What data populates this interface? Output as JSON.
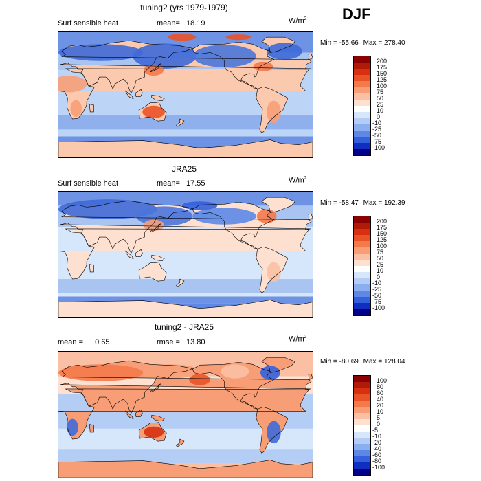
{
  "season_label": "DJF",
  "chart_data": [
    {
      "type": "heatmap",
      "title": "tuning2 (yrs 1979-1979)",
      "variable": "Surf sensible heat",
      "stat_label": "mean=",
      "stat_value": "18.19",
      "units": "W/m2",
      "min_label": "Min = -55.66",
      "max_label": "Max = 278.40",
      "min": -55.66,
      "max": 278.4,
      "colorbar_levels": [
        "200",
        "175",
        "150",
        "125",
        "100",
        "75",
        "50",
        "25",
        "10",
        "0",
        "-10",
        "-25",
        "-50",
        "-75",
        "-100"
      ],
      "colorbar_colors": [
        "#8b0000",
        "#b01a08",
        "#d6300f",
        "#ea5327",
        "#f47a4c",
        "#f89e77",
        "#fbc0a3",
        "#fde0cf",
        "#ffffff",
        "#d6e6fb",
        "#b4cdf4",
        "#8aaeef",
        "#5d88e6",
        "#3460db",
        "#0f2fbe",
        "#00008b"
      ],
      "map_style": "sensible_model"
    },
    {
      "type": "heatmap",
      "title": "JRA25",
      "variable": "Surf sensible heat",
      "stat_label": "mean=",
      "stat_value": "17.55",
      "units": "W/m2",
      "min_label": "Min = -58.47",
      "max_label": "Max = 192.39",
      "min": -58.47,
      "max": 192.39,
      "colorbar_levels": [
        "200",
        "175",
        "150",
        "125",
        "100",
        "75",
        "50",
        "25",
        "10",
        "0",
        "-10",
        "-25",
        "-50",
        "-75",
        "-100"
      ],
      "colorbar_colors": [
        "#8b0000",
        "#b01a08",
        "#d6300f",
        "#ea5327",
        "#f47a4c",
        "#f89e77",
        "#fbc0a3",
        "#fde0cf",
        "#ffffff",
        "#d6e6fb",
        "#b4cdf4",
        "#8aaeef",
        "#5d88e6",
        "#3460db",
        "#0f2fbe",
        "#00008b"
      ],
      "map_style": "sensible_obs"
    },
    {
      "type": "heatmap",
      "title": "tuning2 - JRA25",
      "variable": "",
      "stat_label": "mean =",
      "stat_value": "0.65",
      "rmse_label": "rmse =",
      "rmse_value": "13.80",
      "units": "W/m2",
      "min_label": "Min = -80.69",
      "max_label": "Max = 128.04",
      "min": -80.69,
      "max": 128.04,
      "colorbar_levels": [
        "100",
        "80",
        "60",
        "40",
        "20",
        "10",
        "5",
        "0",
        "-5",
        "-10",
        "-20",
        "-40",
        "-60",
        "-80",
        "-100"
      ],
      "colorbar_colors": [
        "#8b0000",
        "#b01a08",
        "#d6300f",
        "#ea5327",
        "#f47a4c",
        "#f89e77",
        "#fbc0a3",
        "#fde0cf",
        "#ffffff",
        "#d6e6fb",
        "#b4cdf4",
        "#8aaeef",
        "#5d88e6",
        "#3460db",
        "#0f2fbe",
        "#00008b"
      ],
      "map_style": "difference"
    }
  ]
}
